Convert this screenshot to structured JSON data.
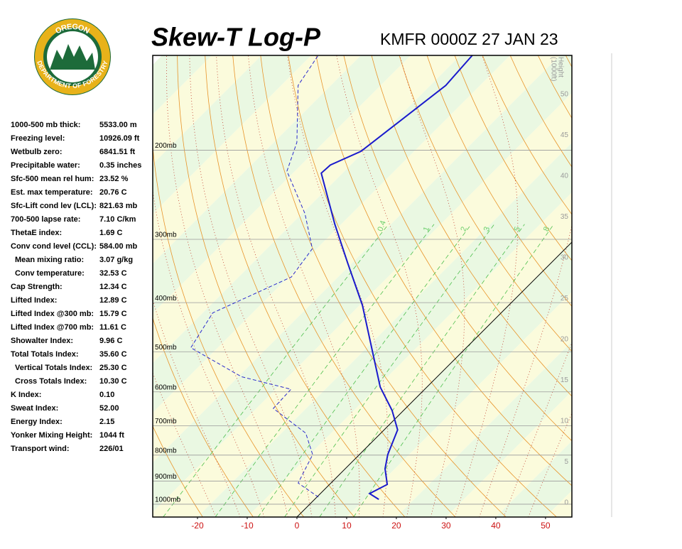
{
  "logo": {
    "top": "OREGON",
    "bottom": "DEPARTMENT OF FORESTRY"
  },
  "header": {
    "title": "Skew-T Log-P",
    "station": "KMFR 0000Z 27 JAN 23"
  },
  "indices": [
    {
      "label": "1000-500 mb thick:",
      "value": "5533.00 m"
    },
    {
      "label": "Freezing level:",
      "value": "10926.09 ft"
    },
    {
      "label": "Wetbulb zero:",
      "value": "6841.51 ft"
    },
    {
      "label": "Precipitable water:",
      "value": "0.35 inches"
    },
    {
      "label": "Sfc-500 mean rel hum:",
      "value": "23.52 %"
    },
    {
      "label": "Est. max temperature:",
      "value": "20.76 C"
    },
    {
      "label": "Sfc-Lift cond lev (LCL):",
      "value": "821.63 mb"
    },
    {
      "label": "700-500 lapse rate:",
      "value": "7.10 C/km"
    },
    {
      "label": "ThetaE index:",
      "value": "1.69 C"
    },
    {
      "label": "Conv cond level (CCL):",
      "value": "584.00 mb"
    },
    {
      "label": "Mean mixing ratio:",
      "value": "3.07 g/kg"
    },
    {
      "label": "Conv temperature:",
      "value": "32.53 C"
    },
    {
      "label": "Cap Strength:",
      "value": "12.34 C"
    },
    {
      "label": "Lifted Index:",
      "value": "12.89 C"
    },
    {
      "label": "Lifted Index @300 mb:",
      "value": "15.79 C"
    },
    {
      "label": "Lifted Index @700 mb:",
      "value": "11.61 C"
    },
    {
      "label": "Showalter Index:",
      "value": "9.96 C"
    },
    {
      "label": "Total Totals Index:",
      "value": "35.60 C"
    },
    {
      "label": "Vertical Totals Index:",
      "value": "25.30 C"
    },
    {
      "label": "Cross Totals Index:",
      "value": "10.30 C"
    },
    {
      "label": "K Index:",
      "value": "0.10"
    },
    {
      "label": "Sweat Index:",
      "value": "52.00"
    },
    {
      "label": "Energy Index:",
      "value": "2.15"
    },
    {
      "label": "Yonker Mixing Height:",
      "value": "1044 ft"
    },
    {
      "label": "Transport wind:",
      "value": "226/01"
    }
  ],
  "chart_data": {
    "type": "skewt",
    "ylim": [
      1060,
      130
    ],
    "log_y": true,
    "yticks": [
      {
        "value": 1000,
        "label": "1000mb"
      },
      {
        "value": 900,
        "label": "900mb"
      },
      {
        "value": 800,
        "label": "800mb"
      },
      {
        "value": 700,
        "label": "700mb"
      },
      {
        "value": 600,
        "label": "600mb"
      },
      {
        "value": 500,
        "label": "500mb"
      },
      {
        "value": 400,
        "label": "400mb"
      },
      {
        "value": 300,
        "label": "300mb"
      },
      {
        "value": 200,
        "label": "200mb"
      }
    ],
    "xlim": [
      -29,
      55.3
    ],
    "xticks": [
      -20,
      -10,
      0,
      10,
      20,
      30,
      40,
      50
    ],
    "height_label": [
      "Height",
      "(1000ft)"
    ],
    "y2lim": [
      -1.74,
      54.78
    ],
    "y2ticks": [
      0,
      5,
      10,
      15,
      20,
      25,
      30,
      35,
      40,
      45,
      50
    ],
    "mixing_ratios": [
      0.4,
      1,
      2,
      3,
      5,
      8
    ],
    "series": [
      {
        "color": "#1a1acc",
        "dashed": false,
        "pressure": [
          978,
          953,
          914,
          851,
          798,
          713,
          653,
          587,
          542,
          405,
          334,
          280,
          222,
          214,
          201,
          149,
          130
        ],
        "values": [
          12.9,
          9.9,
          11.6,
          8.0,
          5.7,
          2.7,
          -2.3,
          -9.4,
          -13.7,
          -29.4,
          -40.9,
          -51.3,
          -64.3,
          -64.1,
          -60.7,
          -56.9,
          -57.6
        ]
      },
      {
        "color": "#2a2acc",
        "dashed": true,
        "pressure": [
          968,
          908,
          798,
          724,
          647,
          593,
          560,
          491,
          419,
          356,
          313,
          267,
          220,
          193,
          149,
          130
        ],
        "values": [
          0.3,
          -6.6,
          -9.4,
          -15.1,
          -26.6,
          -26.9,
          -39.4,
          -55.4,
          -58,
          -49.4,
          -50.9,
          -59.4,
          -71.6,
          -75.4,
          -86.6,
          -88.6
        ]
      }
    ]
  }
}
